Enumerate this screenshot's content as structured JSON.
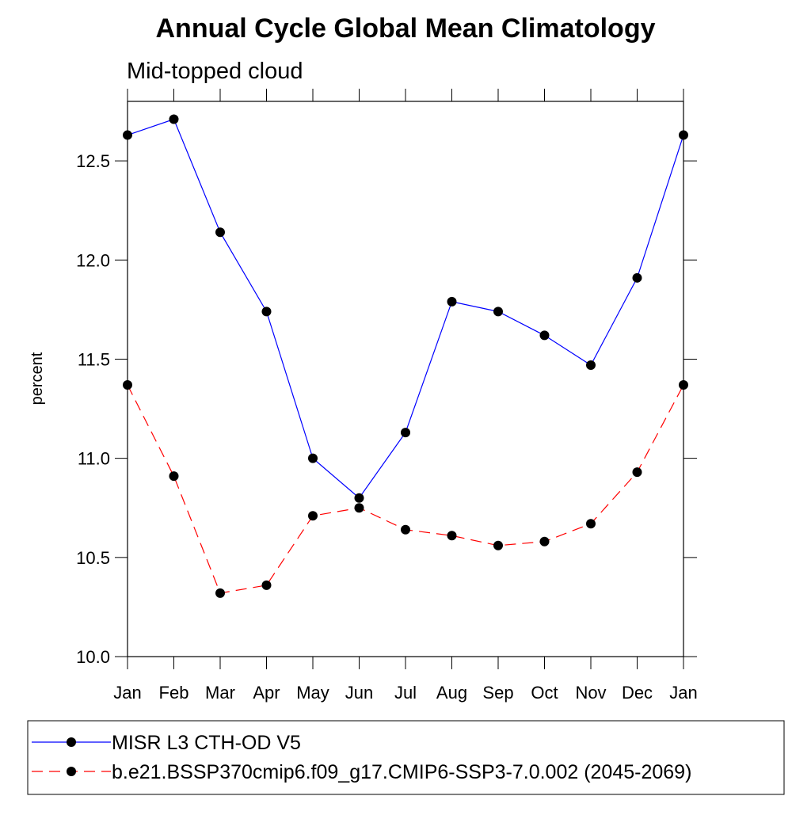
{
  "chart_data": {
    "type": "line",
    "title": "Annual Cycle Global Mean Climatology",
    "subtitle": "Mid-topped cloud",
    "y_label": "percent",
    "categories": [
      "Jan",
      "Feb",
      "Mar",
      "Apr",
      "May",
      "Jun",
      "Jul",
      "Aug",
      "Sep",
      "Oct",
      "Nov",
      "Dec",
      "Jan"
    ],
    "series": [
      {
        "name": "MISR L3 CTH-OD V5",
        "color": "#0000ff",
        "dash": "solid",
        "values": [
          12.63,
          12.71,
          12.14,
          11.74,
          11.0,
          10.8,
          11.13,
          11.79,
          11.74,
          11.62,
          11.47,
          11.91,
          12.63
        ]
      },
      {
        "name": "b.e21.BSSP370cmip6.f09_g17.CMIP6-SSP3-7.0.002 (2045-2069)",
        "color": "#ff0000",
        "dash": "dashed",
        "values": [
          11.37,
          10.91,
          10.32,
          10.36,
          10.71,
          10.75,
          10.64,
          10.61,
          10.56,
          10.58,
          10.67,
          10.93,
          11.37
        ]
      }
    ],
    "ylim": [
      10.0,
      12.8
    ],
    "yticks": [
      {
        "value": 10,
        "label": "10.0"
      },
      10.5,
      {
        "value": 11,
        "label": "11.0"
      },
      11.5,
      {
        "value": 12,
        "label": "12.0"
      },
      12.5
    ],
    "legend": "bottom"
  }
}
